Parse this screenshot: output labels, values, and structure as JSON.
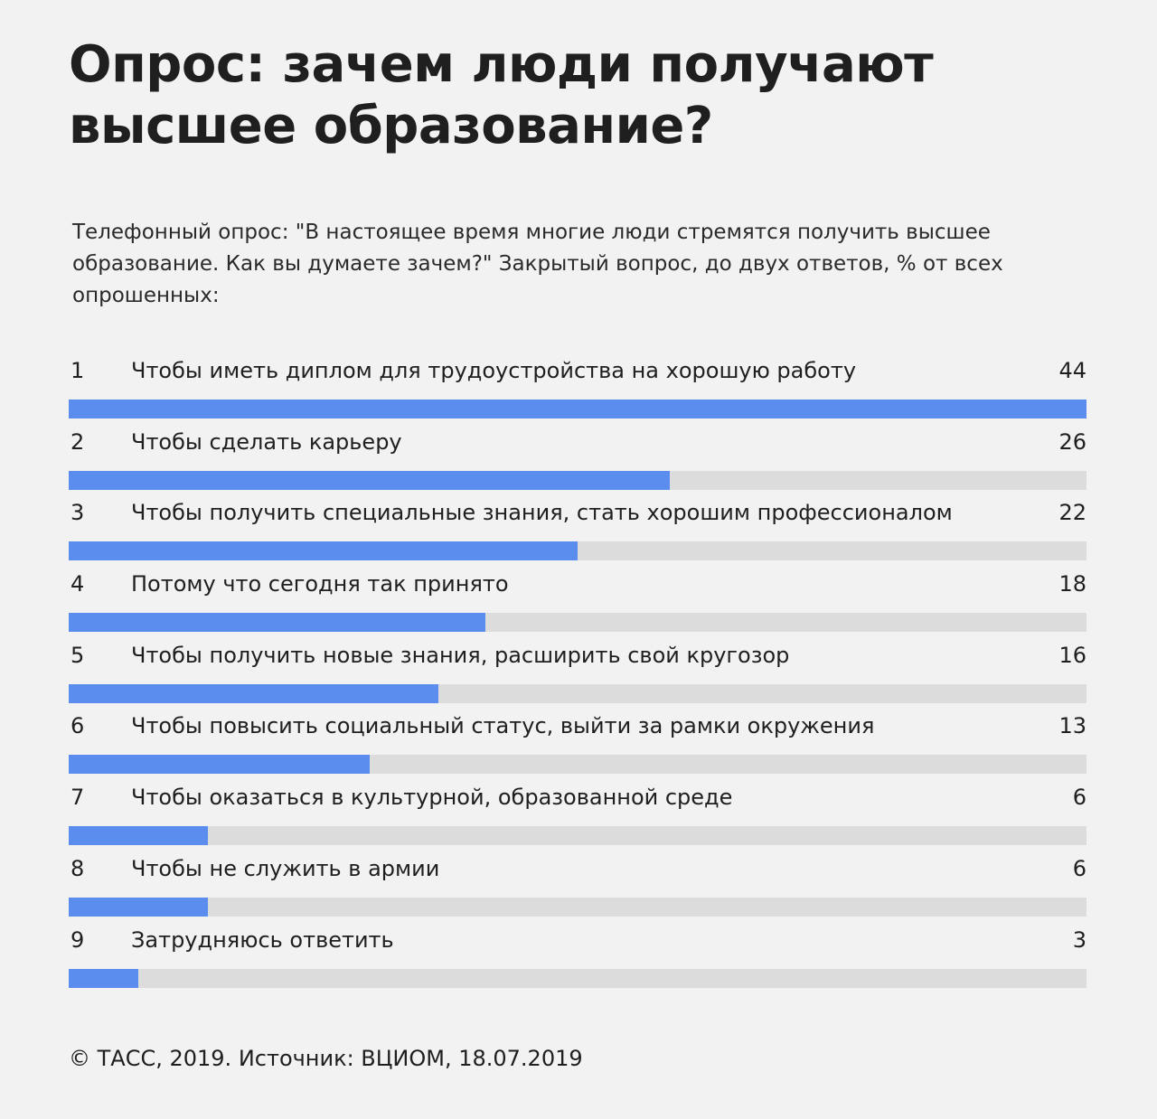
{
  "chart_data": {
    "type": "bar",
    "orientation": "horizontal",
    "title": "Опрос: зачем люди получают высшее образование?",
    "subtitle": "Телефонный опрос: \"В настоящее время многие люди стремятся получить высшее образование. Как вы думаете зачем?\" Закрытый вопрос, до двух ответов, % от всех опрошенных:",
    "categories": [
      "Чтобы иметь диплом для трудоустройства на хорошую работу",
      "Чтобы сделать карьеру",
      "Чтобы получить специальные знания, стать хорошим профессионалом",
      "Потому что сегодня так принято",
      "Чтобы получить новые знания, расширить свой кругозор",
      "Чтобы повысить социальный статус, выйти за рамки окружения",
      "Чтобы оказаться в культурной, образованной среде",
      "Чтобы не служить в армии",
      "Затрудняюсь ответить"
    ],
    "ranks": [
      "1",
      "2",
      "3",
      "4",
      "5",
      "6",
      "7",
      "8",
      "9"
    ],
    "values": [
      44,
      26,
      22,
      18,
      16,
      13,
      6,
      6,
      3
    ],
    "xlim": [
      0,
      44
    ],
    "grid": false,
    "colors": {
      "bar": "#5b8def",
      "track": "#dcdcdc",
      "background": "#f2f2f2"
    },
    "source": "© ТАСС, 2019. Источник: ВЦИОМ, 18.07.2019"
  }
}
